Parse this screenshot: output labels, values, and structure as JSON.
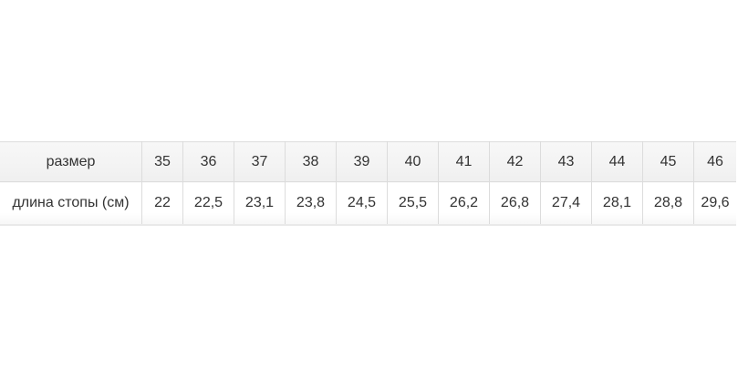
{
  "page": {
    "background": "#ffffff"
  },
  "size_chart": {
    "rows": [
      {
        "label": "размер",
        "cells": [
          "35",
          "36",
          "37",
          "38",
          "39",
          "40",
          "41",
          "42",
          "43",
          "44",
          "45",
          "46"
        ]
      },
      {
        "label": "длина стопы (см)",
        "cells": [
          "22",
          "22,5",
          "23,1",
          "23,8",
          "24,5",
          "25,5",
          "26,2",
          "26,8",
          "27,4",
          "28,1",
          "28,8",
          "29,6"
        ]
      }
    ]
  },
  "chart_data": {
    "type": "table",
    "title": "",
    "row_labels": [
      "размер",
      "длина стопы (см)"
    ],
    "categories": [
      35,
      36,
      37,
      38,
      39,
      40,
      41,
      42,
      43,
      44,
      45,
      46
    ],
    "series": [
      {
        "name": "длина стопы (см)",
        "values": [
          22,
          22.5,
          23.1,
          23.8,
          24.5,
          25.5,
          26.2,
          26.8,
          27.4,
          28.1,
          28.8,
          29.6
        ]
      }
    ],
    "layout": {
      "grid": "cell-borders",
      "header_row_background": "#f4f4f4",
      "body_row_background": "#ffffff"
    }
  },
  "colors": {
    "header_row_bg": "#f4f4f4",
    "row_bg": "#ffffff",
    "border": "#dcdcdc",
    "text": "#333333"
  }
}
